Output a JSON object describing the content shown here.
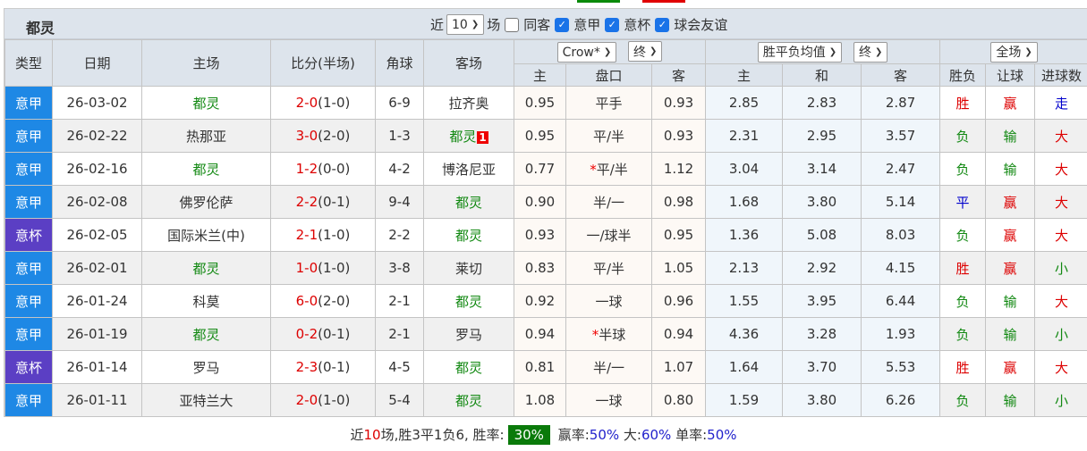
{
  "colors": {
    "league": "#1e88e5",
    "cup": "#5b3fc4",
    "top_green": "#0a8a0a",
    "top_red": "#e00000"
  },
  "header": {
    "team": "都灵",
    "near_label": "近",
    "count_value": "10",
    "games_label": "场",
    "same_away_label": "同客",
    "filters": [
      {
        "label": "意甲",
        "checked": true
      },
      {
        "label": "意杯",
        "checked": true
      },
      {
        "label": "球会友谊",
        "checked": true
      }
    ],
    "same_away_checked": false
  },
  "columns": {
    "type": "类型",
    "date": "日期",
    "home": "主场",
    "score": "比分(半场)",
    "corner": "角球",
    "away": "客场",
    "ah_company": "Crow*",
    "ah_time": "终",
    "eu_company": "胜平负均值",
    "eu_time": "终",
    "result_scope": "全场",
    "ah_home": "主",
    "ah_line": "盘口",
    "ah_away": "客",
    "eu_home": "主",
    "eu_draw": "和",
    "eu_away": "客",
    "wl": "胜负",
    "handicap": "让球",
    "goals": "进球数"
  },
  "rows": [
    {
      "type": "意甲",
      "date": "26-03-02",
      "home": "都灵",
      "score": "2-0",
      "half": "(1-0)",
      "corner": "6-9",
      "away": "拉齐奥",
      "ah_home": "0.95",
      "line": "平手",
      "ah_away": "0.93",
      "eu_home": "2.85",
      "eu_draw": "2.83",
      "eu_away": "2.87",
      "wl": "胜",
      "hc": "赢",
      "goals": "走"
    },
    {
      "type": "意甲",
      "date": "26-02-22",
      "home": "热那亚",
      "score": "3-0",
      "half": "(2-0)",
      "corner": "1-3",
      "away": "都灵",
      "away_red_card": "1",
      "ah_home": "0.95",
      "line": "平/半",
      "ah_away": "0.93",
      "eu_home": "2.31",
      "eu_draw": "2.95",
      "eu_away": "3.57",
      "wl": "负",
      "hc": "输",
      "goals": "大"
    },
    {
      "type": "意甲",
      "date": "26-02-16",
      "home": "都灵",
      "score": "1-2",
      "half": "(0-0)",
      "corner": "4-2",
      "away": "博洛尼亚",
      "ah_home": "0.77",
      "line": "平/半",
      "line_star": "*",
      "ah_away": "1.12",
      "eu_home": "3.04",
      "eu_draw": "3.14",
      "eu_away": "2.47",
      "wl": "负",
      "hc": "输",
      "goals": "大"
    },
    {
      "type": "意甲",
      "date": "26-02-08",
      "home": "佛罗伦萨",
      "score": "2-2",
      "half": "(0-1)",
      "corner": "9-4",
      "away": "都灵",
      "ah_home": "0.90",
      "line": "半/一",
      "ah_away": "0.98",
      "eu_home": "1.68",
      "eu_draw": "3.80",
      "eu_away": "5.14",
      "wl": "平",
      "hc": "赢",
      "goals": "大"
    },
    {
      "type": "意杯",
      "date": "26-02-05",
      "home": "国际米兰(中)",
      "score": "2-1",
      "half": "(1-0)",
      "corner": "2-2",
      "away": "都灵",
      "ah_home": "0.93",
      "line": "一/球半",
      "ah_away": "0.95",
      "eu_home": "1.36",
      "eu_draw": "5.08",
      "eu_away": "8.03",
      "wl": "负",
      "hc": "赢",
      "goals": "大"
    },
    {
      "type": "意甲",
      "date": "26-02-01",
      "home": "都灵",
      "score": "1-0",
      "half": "(1-0)",
      "corner": "3-8",
      "away": "莱切",
      "ah_home": "0.83",
      "line": "平/半",
      "ah_away": "1.05",
      "eu_home": "2.13",
      "eu_draw": "2.92",
      "eu_away": "4.15",
      "wl": "胜",
      "hc": "赢",
      "goals": "小"
    },
    {
      "type": "意甲",
      "date": "26-01-24",
      "home": "科莫",
      "score": "6-0",
      "half": "(2-0)",
      "corner": "2-1",
      "away": "都灵",
      "ah_home": "0.92",
      "line": "一球",
      "ah_away": "0.96",
      "eu_home": "1.55",
      "eu_draw": "3.95",
      "eu_away": "6.44",
      "wl": "负",
      "hc": "输",
      "goals": "大"
    },
    {
      "type": "意甲",
      "date": "26-01-19",
      "home": "都灵",
      "score": "0-2",
      "half": "(0-1)",
      "corner": "2-1",
      "away": "罗马",
      "ah_home": "0.94",
      "line": "半球",
      "line_star": "*",
      "ah_away": "0.94",
      "eu_home": "4.36",
      "eu_draw": "3.28",
      "eu_away": "1.93",
      "wl": "负",
      "hc": "输",
      "goals": "小"
    },
    {
      "type": "意杯",
      "date": "26-01-14",
      "home": "罗马",
      "score": "2-3",
      "half": "(0-1)",
      "corner": "4-5",
      "away": "都灵",
      "ah_home": "0.81",
      "line": "半/一",
      "ah_away": "1.07",
      "eu_home": "1.64",
      "eu_draw": "3.70",
      "eu_away": "5.53",
      "wl": "胜",
      "hc": "赢",
      "goals": "大"
    },
    {
      "type": "意甲",
      "date": "26-01-11",
      "home": "亚特兰大",
      "score": "2-0",
      "half": "(1-0)",
      "corner": "5-4",
      "away": "都灵",
      "ah_home": "1.08",
      "line": "一球",
      "ah_away": "0.80",
      "eu_home": "1.59",
      "eu_draw": "3.80",
      "eu_away": "6.26",
      "wl": "负",
      "hc": "输",
      "goals": "小"
    }
  ],
  "summary": {
    "prefix": "近",
    "count": "10",
    "text": "场,胜3平1负6, 胜率:",
    "win_rate": "30%",
    "hc_label": "赢率:",
    "hc_rate": "50%",
    "big_label": "大:",
    "big_rate": "60%",
    "odd_label": "单率:",
    "odd_rate": "50%"
  }
}
